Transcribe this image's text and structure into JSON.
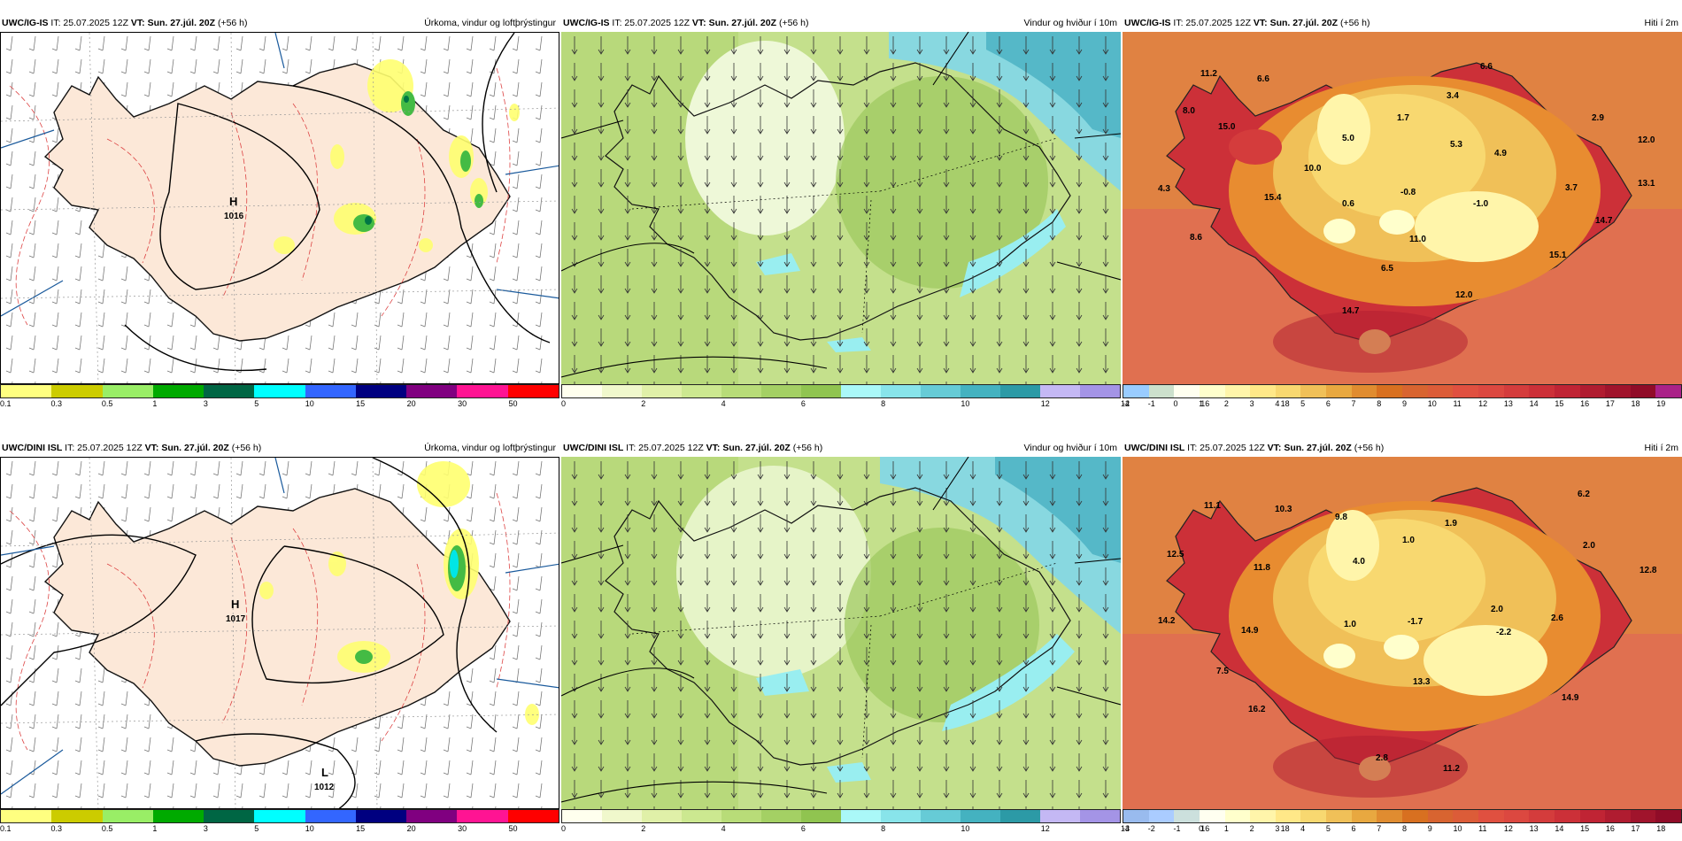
{
  "rows": [
    {
      "model": "UWC/IG-IS",
      "it": "IT: 25.07.2025 12Z",
      "vt": "VT: Sun. 27.júl. 20Z",
      "lead": "(+56 h)",
      "panels": [
        {
          "field": "Úrkoma, vindur og loftþrýstingur",
          "pressure_high": {
            "label": "H",
            "value": "1016"
          },
          "pressure_low": null
        },
        {
          "field": "Vindur og hviður í 10m"
        },
        {
          "field": "Hiti í 2m",
          "temps": [
            "11.2",
            "6.6",
            "6.6",
            "8.0",
            "15.0",
            "3.4",
            "1.7",
            "2.9",
            "5.0",
            "5.3",
            "4.9",
            "12.0",
            "10.0",
            "4.3",
            "15.4",
            "-0.8",
            "0.6",
            "-1.0",
            "3.7",
            "13.1",
            "14.7",
            "8.6",
            "11.0",
            "15.1",
            "6.5",
            "12.0",
            "14.7"
          ]
        }
      ]
    },
    {
      "model": "UWC/DINI ISL",
      "it": "IT: 25.07.2025 12Z",
      "vt": "VT: Sun. 27.júl. 20Z",
      "lead": "(+56 h)",
      "panels": [
        {
          "field": "Úrkoma, vindur og loftþrýstingur",
          "pressure_high": {
            "label": "H",
            "value": "1017"
          },
          "pressure_low": {
            "label": "L",
            "value": "1012"
          }
        },
        {
          "field": "Vindur og hviður í 10m"
        },
        {
          "field": "Hiti í 2m",
          "temps": [
            "11.1",
            "10.3",
            "9.8",
            "6.2",
            "12.5",
            "1.9",
            "1.0",
            "2.0",
            "11.8",
            "4.0",
            "12.8",
            "2.0",
            "14.2",
            "14.9",
            "1.0",
            "-1.7",
            "-2.2",
            "2.6",
            "7.5",
            "13.3",
            "14.9",
            "16.2",
            "2.8",
            "11.2"
          ]
        }
      ]
    }
  ],
  "legends": {
    "precip": {
      "labels": [
        "0.1",
        "0.3",
        "0.5",
        "1",
        "3",
        "5",
        "10",
        "15",
        "20",
        "30",
        "50"
      ],
      "colors": [
        "#ffff80",
        "#cccc00",
        "#99ee66",
        "#00aa00",
        "#006644",
        "#00ffff",
        "#3366ff",
        "#000080",
        "#800080",
        "#ff1493",
        "#ff0000"
      ]
    },
    "wind": {
      "labels": [
        "0",
        "2",
        "4",
        "6",
        "8",
        "10",
        "12",
        "14",
        "16",
        "18"
      ],
      "colors": [
        "#ffffee",
        "#f0f8cc",
        "#e0f0a8",
        "#cce890",
        "#b8dc78",
        "#a4d064",
        "#90c450",
        "#aaf8f8",
        "#88e4ea",
        "#66cbd6",
        "#44b2c0",
        "#2c9aa6",
        "#c4b8f4",
        "#a494e6"
      ]
    },
    "temp_ig": {
      "labels": [
        "-2",
        "-1",
        "0",
        "1",
        "2",
        "3",
        "4",
        "5",
        "6",
        "7",
        "8",
        "9",
        "10",
        "11",
        "12",
        "13",
        "14",
        "15",
        "16",
        "17",
        "18",
        "19"
      ],
      "colors": [
        "#99ccff",
        "#cce0cc",
        "#fffff0",
        "#ffffcc",
        "#fff5aa",
        "#ffe888",
        "#f8d870",
        "#f0c058",
        "#e8a840",
        "#e08c30",
        "#d87020",
        "#d86430",
        "#dc5c38",
        "#e05040",
        "#dc4840",
        "#d43c3c",
        "#cc3038",
        "#c02434",
        "#b01c30",
        "#a0142c",
        "#900c28",
        "#aa2288"
      ]
    },
    "temp_dini": {
      "labels": [
        "-3",
        "-2",
        "-1",
        "0",
        "1",
        "2",
        "3",
        "4",
        "5",
        "6",
        "7",
        "8",
        "9",
        "10",
        "11",
        "12",
        "13",
        "14",
        "15",
        "16",
        "17",
        "18"
      ],
      "colors": [
        "#99bbee",
        "#aaccff",
        "#cce0dd",
        "#fffff0",
        "#ffffcc",
        "#fff5aa",
        "#ffe888",
        "#f8d870",
        "#f0c058",
        "#e8a840",
        "#e08c30",
        "#d87020",
        "#d86430",
        "#dc5c38",
        "#e05040",
        "#dc4840",
        "#d43c3c",
        "#cc3038",
        "#c02434",
        "#b01c30",
        "#a0142c",
        "#900c28"
      ]
    }
  }
}
